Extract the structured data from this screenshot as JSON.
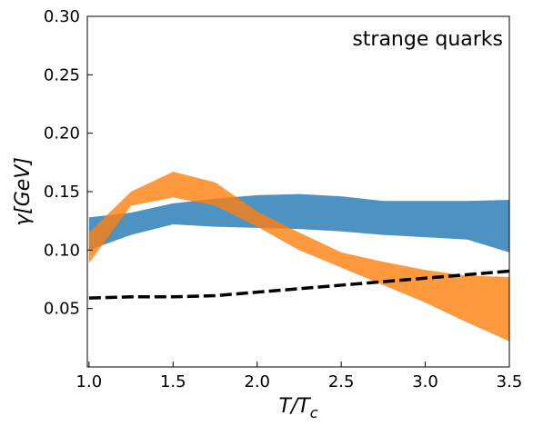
{
  "chart_data": {
    "type": "band",
    "annotation": "strange quarks",
    "xlabel": {
      "main": "T/T",
      "sub": "c"
    },
    "ylabel": "γ[GeV]",
    "x": [
      1.0,
      1.25,
      1.5,
      1.75,
      2.0,
      2.25,
      2.5,
      2.75,
      3.0,
      3.25,
      3.5
    ],
    "bands": [
      {
        "color": "#1f77b4",
        "opacity": 0.8,
        "upper": [
          0.128,
          0.132,
          0.14,
          0.144,
          0.147,
          0.148,
          0.146,
          0.142,
          0.142,
          0.142,
          0.143
        ],
        "lower": [
          0.1,
          0.113,
          0.122,
          0.12,
          0.119,
          0.118,
          0.116,
          0.113,
          0.111,
          0.109,
          0.098
        ]
      },
      {
        "color": "#ff7f0e",
        "opacity": 0.8,
        "upper": [
          0.115,
          0.15,
          0.167,
          0.158,
          0.133,
          0.115,
          0.098,
          0.09,
          0.083,
          0.078,
          0.077
        ],
        "lower": [
          0.089,
          0.138,
          0.145,
          0.138,
          0.12,
          0.1,
          0.085,
          0.07,
          0.055,
          0.038,
          0.022
        ]
      }
    ],
    "series": [
      {
        "color": "#000000",
        "dashed": true,
        "values": [
          0.059,
          0.06,
          0.06,
          0.061,
          0.064,
          0.067,
          0.07,
          0.073,
          0.076,
          0.079,
          0.082
        ]
      }
    ],
    "xlim": [
      0.99,
      3.5
    ],
    "ylim": [
      0,
      0.3
    ],
    "xticks": [
      {
        "value": 1.0,
        "label": "1.0"
      },
      1.5,
      {
        "value": 2.0,
        "label": "2.0"
      },
      2.5,
      {
        "value": 3.0,
        "label": "3.0"
      },
      3.5
    ],
    "yticks": [
      0.05,
      {
        "value": 0.1,
        "label": "0.10"
      },
      0.15,
      {
        "value": 0.2,
        "label": "0.20"
      },
      0.25,
      {
        "value": 0.3,
        "label": "0.30"
      }
    ]
  }
}
